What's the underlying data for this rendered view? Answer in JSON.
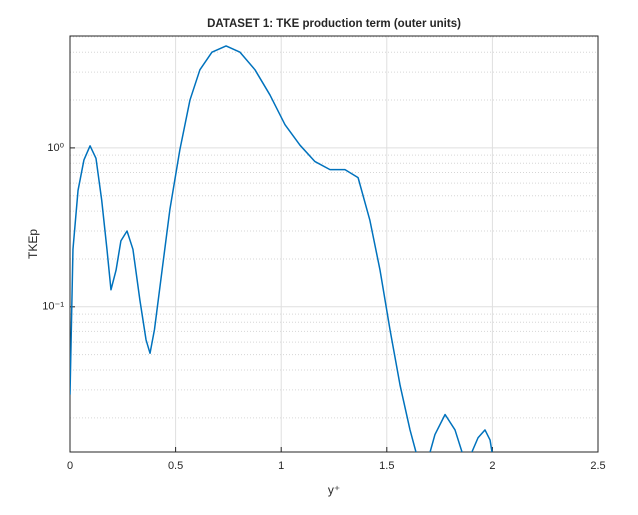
{
  "chart_data": {
    "type": "line",
    "title": "DATASET 1: TKE production term (outer units)",
    "x_label": "y⁺",
    "y_label": "TKEp",
    "x": [
      0,
      0.014,
      0.038,
      0.066,
      0.095,
      0.123,
      0.15,
      0.175,
      0.194,
      0.218,
      0.241,
      0.27,
      0.298,
      0.331,
      0.36,
      0.379,
      0.4,
      0.436,
      0.473,
      0.52,
      0.568,
      0.615,
      0.672,
      0.739,
      0.805,
      0.876,
      0.947,
      1.018,
      1.089,
      1.16,
      1.231,
      1.302,
      1.364,
      1.42,
      1.468,
      1.515,
      1.563,
      1.61,
      1.638,
      1.657,
      1.69,
      1.705,
      1.728,
      1.776,
      1.823,
      1.856,
      1.88,
      1.903,
      1.932,
      1.965,
      1.989,
      1.998
    ],
    "series": [
      {
        "name": "TKEp",
        "color": "#0072bd",
        "values": [
          0.028,
          0.23,
          0.54,
          0.84,
          1.03,
          0.86,
          0.47,
          0.23,
          0.128,
          0.17,
          0.26,
          0.3,
          0.23,
          0.11,
          0.062,
          0.051,
          0.072,
          0.17,
          0.41,
          0.97,
          2.0,
          3.1,
          4.0,
          4.38,
          4.0,
          3.1,
          2.15,
          1.4,
          1.04,
          0.82,
          0.73,
          0.73,
          0.65,
          0.35,
          0.17,
          0.072,
          0.032,
          0.0168,
          0.0122,
          0.01,
          0.008,
          0.0122,
          0.0157,
          0.021,
          0.0168,
          0.0122,
          0.01,
          0.0122,
          0.015,
          0.0168,
          0.0145,
          0.0122
        ]
      }
    ],
    "xlim": [
      0,
      2.5
    ],
    "xticks": [
      0,
      0.5,
      1,
      1.5,
      2,
      2.5
    ],
    "ylim": [
      0.0122,
      5.06
    ],
    "ylog": true,
    "yticks": [
      {
        "value": 0.1,
        "label": "10⁻¹"
      },
      {
        "value": 1,
        "label": "10⁰"
      }
    ],
    "yminorticks": [
      0.02,
      0.03,
      0.04,
      0.05,
      0.06,
      0.07,
      0.08,
      0.09,
      0.2,
      0.3,
      0.4,
      0.5,
      0.6,
      0.7,
      0.8,
      0.9,
      2,
      3,
      4,
      5
    ],
    "grid": true
  }
}
